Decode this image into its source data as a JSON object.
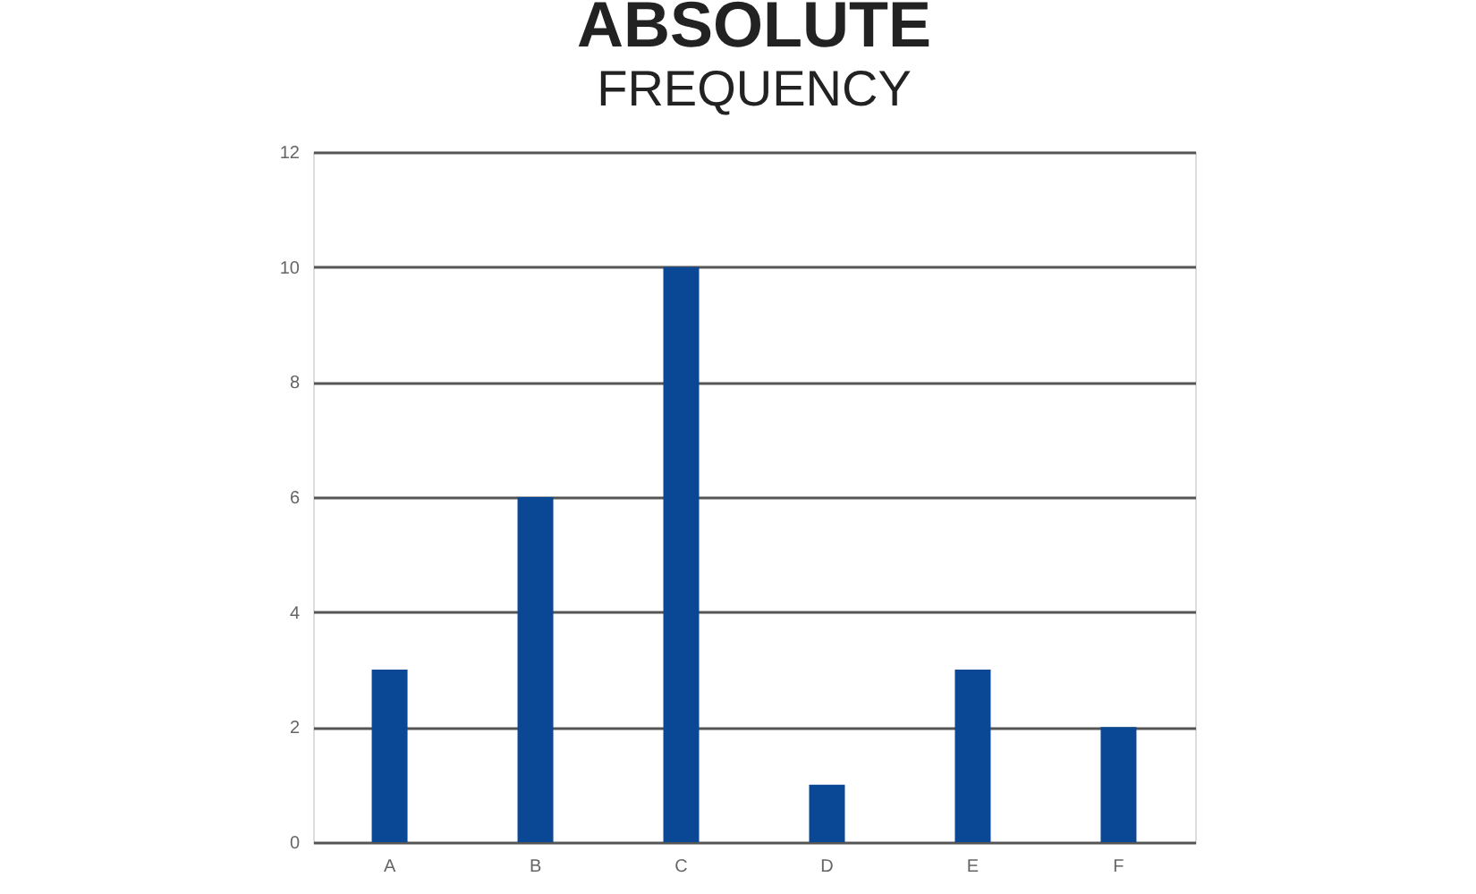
{
  "chart_data": {
    "type": "bar",
    "title": "ABSOLUTE",
    "subtitle": "FREQUENCY",
    "categories": [
      "A",
      "B",
      "C",
      "D",
      "E",
      "F"
    ],
    "values": [
      3,
      6,
      10,
      1,
      3,
      2
    ],
    "color": "#0a4896",
    "ylim": [
      0,
      12
    ],
    "yticks": [
      0,
      2,
      4,
      6,
      8,
      10,
      12
    ],
    "grid": "y"
  }
}
